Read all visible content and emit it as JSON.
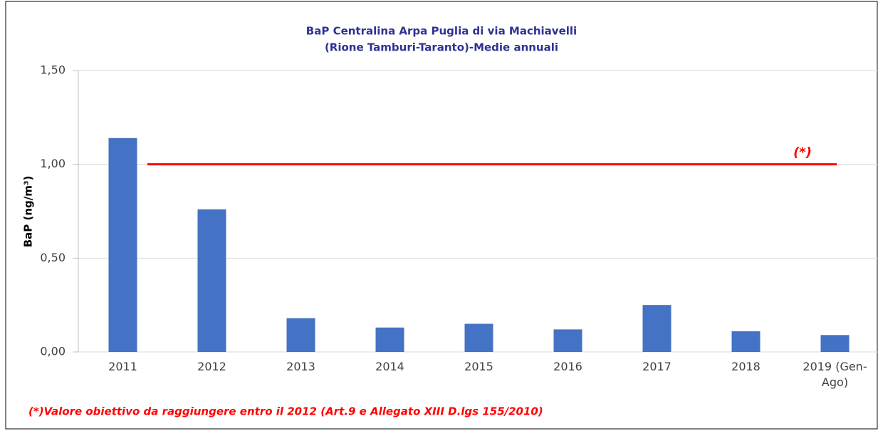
{
  "chart_data": {
    "type": "bar",
    "title": [
      "BaP Centralina Arpa Puglia di via Machiavelli",
      "(Rione Tamburi-Taranto)-Medie annuali"
    ],
    "y_axis_label": "BaP (ng/m³)",
    "categories": [
      "2011",
      "2012",
      "2013",
      "2014",
      "2015",
      "2016",
      "2017",
      "2018",
      "2019 (Gen-Ago)"
    ],
    "values": [
      1.14,
      0.76,
      0.18,
      0.13,
      0.15,
      0.12,
      0.25,
      0.11,
      0.09
    ],
    "color": "#4472c4",
    "ylim": [
      0,
      1.5
    ],
    "yticks": [
      {
        "value": 0,
        "label": "0,00"
      },
      {
        "value": 0.5,
        "label": "0,50"
      },
      {
        "value": 1,
        "label": "1,00"
      },
      {
        "value": 1.5,
        "label": "1,50"
      }
    ],
    "grid": true,
    "reference_line": {
      "value": 1,
      "label": "(*)",
      "color": "#ff0000"
    },
    "footnote": "(*)Valore obiettivo da raggiungere entro il 2012 (Art.9 e Allegato XIII D.lgs  155/2010)"
  }
}
